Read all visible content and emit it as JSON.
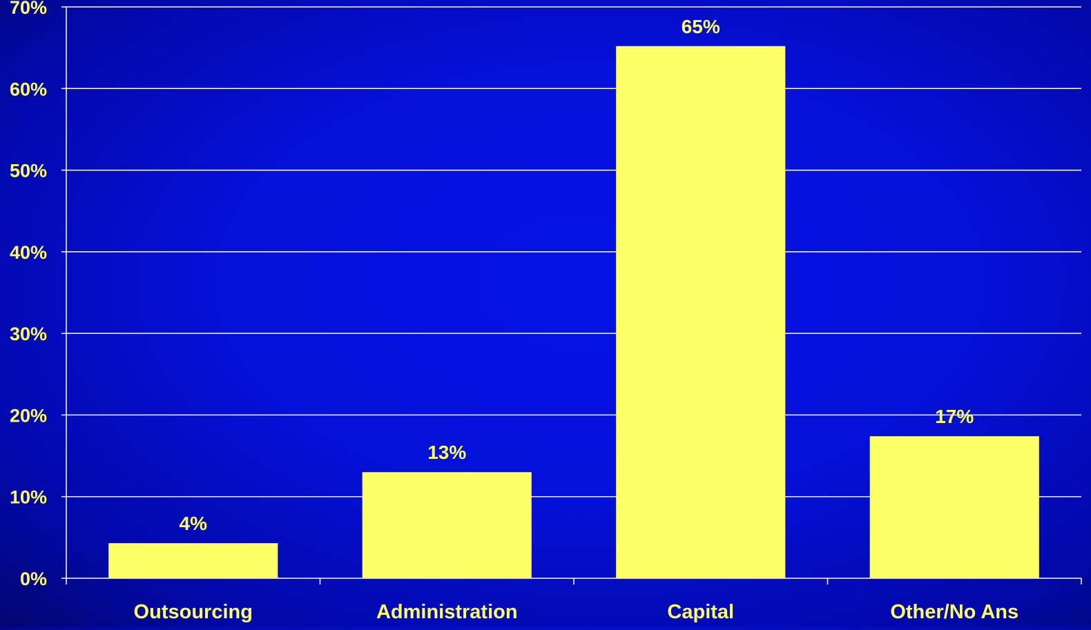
{
  "chart_data": {
    "type": "bar",
    "categories": [
      "Outsourcing",
      "Administration",
      "Capital",
      "Other/No Ans"
    ],
    "values": [
      4.3,
      13,
      65.2,
      17.4
    ],
    "data_labels": [
      "4%",
      "13%",
      "65%",
      "17%"
    ],
    "yticks": [
      0,
      10,
      20,
      30,
      40,
      50,
      60,
      70
    ],
    "ytick_labels": [
      "0%",
      "10%",
      "20%",
      "30%",
      "40%",
      "50%",
      "60%",
      "70%"
    ],
    "ylim": [
      0,
      70
    ],
    "grid": true,
    "legend": "none",
    "colors": {
      "bar": "#ffff66",
      "label": "#ffff66",
      "grid": "#ffffff",
      "axis": "#ffffff"
    }
  }
}
